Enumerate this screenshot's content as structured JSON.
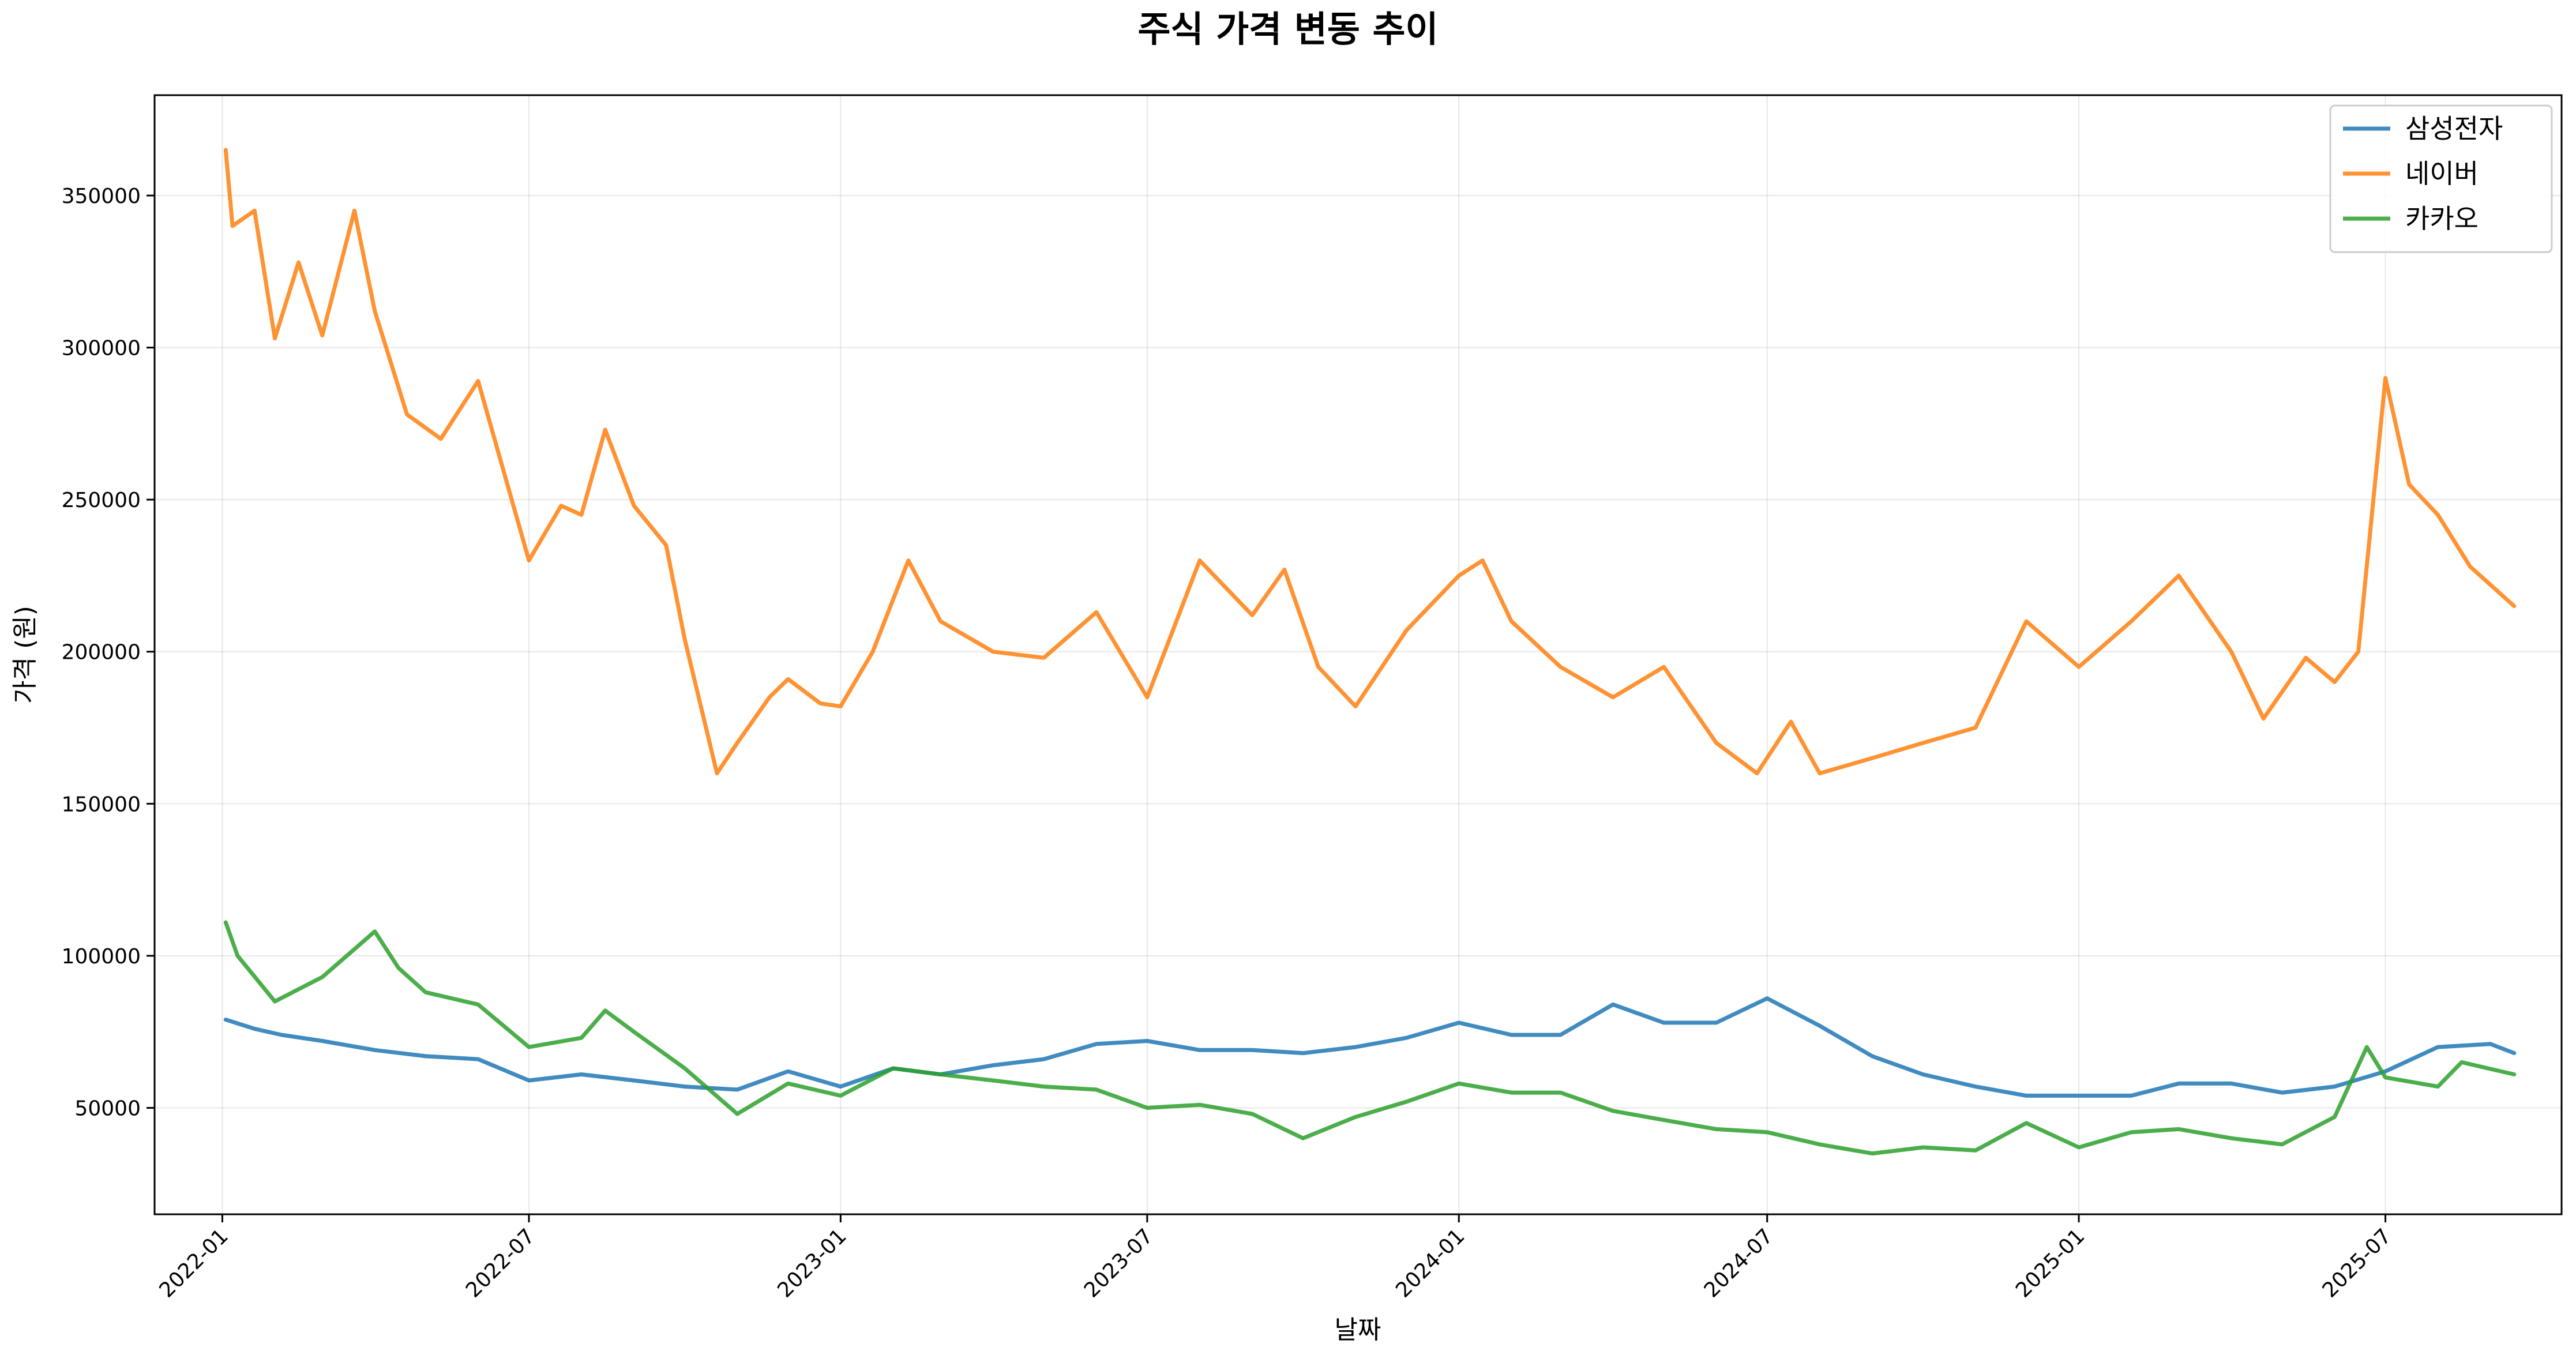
{
  "chart_data": {
    "type": "line",
    "title": "주식 가격 변동 추이",
    "xlabel": "날짜",
    "ylabel": "가격 (원)",
    "x_type": "date",
    "xlim": [
      "2021-11-22",
      "2025-10-13"
    ],
    "ylim": [
      15000,
      383000
    ],
    "x_ticks": [
      "2022-01",
      "2022-07",
      "2023-01",
      "2023-07",
      "2024-01",
      "2024-07",
      "2025-01",
      "2025-07"
    ],
    "y_ticks": [
      50000,
      100000,
      150000,
      200000,
      250000,
      300000,
      350000
    ],
    "grid": true,
    "legend_position": "top-right",
    "series": [
      {
        "name": "삼성전자",
        "color": "#1f77b4",
        "points": [
          [
            "2022-01-03",
            79000
          ],
          [
            "2022-01-20",
            76000
          ],
          [
            "2022-02-05",
            74000
          ],
          [
            "2022-03-01",
            72000
          ],
          [
            "2022-04-01",
            69000
          ],
          [
            "2022-05-01",
            67000
          ],
          [
            "2022-06-01",
            66000
          ],
          [
            "2022-07-01",
            59000
          ],
          [
            "2022-08-01",
            61000
          ],
          [
            "2022-09-01",
            59000
          ],
          [
            "2022-10-01",
            57000
          ],
          [
            "2022-11-01",
            56000
          ],
          [
            "2022-12-01",
            62000
          ],
          [
            "2023-01-01",
            57000
          ],
          [
            "2023-02-01",
            63000
          ],
          [
            "2023-03-01",
            61000
          ],
          [
            "2023-04-01",
            64000
          ],
          [
            "2023-05-01",
            66000
          ],
          [
            "2023-06-01",
            71000
          ],
          [
            "2023-07-01",
            72000
          ],
          [
            "2023-08-01",
            69000
          ],
          [
            "2023-09-01",
            69000
          ],
          [
            "2023-10-01",
            68000
          ],
          [
            "2023-11-01",
            70000
          ],
          [
            "2023-12-01",
            73000
          ],
          [
            "2024-01-01",
            78000
          ],
          [
            "2024-02-01",
            74000
          ],
          [
            "2024-03-01",
            74000
          ],
          [
            "2024-04-01",
            84000
          ],
          [
            "2024-05-01",
            78000
          ],
          [
            "2024-06-01",
            78000
          ],
          [
            "2024-07-01",
            86000
          ],
          [
            "2024-08-01",
            77000
          ],
          [
            "2024-09-01",
            67000
          ],
          [
            "2024-10-01",
            61000
          ],
          [
            "2024-11-01",
            57000
          ],
          [
            "2024-12-01",
            54000
          ],
          [
            "2025-01-01",
            54000
          ],
          [
            "2025-02-01",
            54000
          ],
          [
            "2025-03-01",
            58000
          ],
          [
            "2025-04-01",
            58000
          ],
          [
            "2025-05-01",
            55000
          ],
          [
            "2025-06-01",
            57000
          ],
          [
            "2025-07-01",
            62000
          ],
          [
            "2025-08-01",
            70000
          ],
          [
            "2025-09-01",
            71000
          ],
          [
            "2025-09-15",
            68000
          ]
        ]
      },
      {
        "name": "네이버",
        "color": "#ff7f0e",
        "points": [
          [
            "2022-01-03",
            365000
          ],
          [
            "2022-01-07",
            340000
          ],
          [
            "2022-01-20",
            345000
          ],
          [
            "2022-02-01",
            303000
          ],
          [
            "2022-02-15",
            328000
          ],
          [
            "2022-03-01",
            304000
          ],
          [
            "2022-03-20",
            345000
          ],
          [
            "2022-04-01",
            312000
          ],
          [
            "2022-04-20",
            278000
          ],
          [
            "2022-05-10",
            270000
          ],
          [
            "2022-06-01",
            289000
          ],
          [
            "2022-07-01",
            230000
          ],
          [
            "2022-07-20",
            248000
          ],
          [
            "2022-08-01",
            245000
          ],
          [
            "2022-08-15",
            273000
          ],
          [
            "2022-09-01",
            248000
          ],
          [
            "2022-09-20",
            235000
          ],
          [
            "2022-10-01",
            204000
          ],
          [
            "2022-10-20",
            160000
          ],
          [
            "2022-11-01",
            170000
          ],
          [
            "2022-11-20",
            185000
          ],
          [
            "2022-12-01",
            191000
          ],
          [
            "2022-12-20",
            183000
          ],
          [
            "2023-01-01",
            182000
          ],
          [
            "2023-01-20",
            200000
          ],
          [
            "2023-02-10",
            230000
          ],
          [
            "2023-03-01",
            210000
          ],
          [
            "2023-04-01",
            200000
          ],
          [
            "2023-05-01",
            198000
          ],
          [
            "2023-06-01",
            213000
          ],
          [
            "2023-07-01",
            185000
          ],
          [
            "2023-08-01",
            230000
          ],
          [
            "2023-09-01",
            212000
          ],
          [
            "2023-09-20",
            227000
          ],
          [
            "2023-10-10",
            195000
          ],
          [
            "2023-11-01",
            182000
          ],
          [
            "2023-12-01",
            207000
          ],
          [
            "2024-01-01",
            225000
          ],
          [
            "2024-01-15",
            230000
          ],
          [
            "2024-02-01",
            210000
          ],
          [
            "2024-03-01",
            195000
          ],
          [
            "2024-04-01",
            185000
          ],
          [
            "2024-05-01",
            195000
          ],
          [
            "2024-06-01",
            170000
          ],
          [
            "2024-06-25",
            160000
          ],
          [
            "2024-07-15",
            177000
          ],
          [
            "2024-08-01",
            160000
          ],
          [
            "2024-09-01",
            165000
          ],
          [
            "2024-10-01",
            170000
          ],
          [
            "2024-11-01",
            175000
          ],
          [
            "2024-12-01",
            210000
          ],
          [
            "2025-01-01",
            195000
          ],
          [
            "2025-02-01",
            210000
          ],
          [
            "2025-03-01",
            225000
          ],
          [
            "2025-04-01",
            200000
          ],
          [
            "2025-04-20",
            178000
          ],
          [
            "2025-05-15",
            198000
          ],
          [
            "2025-06-01",
            190000
          ],
          [
            "2025-06-15",
            200000
          ],
          [
            "2025-07-01",
            290000
          ],
          [
            "2025-07-15",
            255000
          ],
          [
            "2025-08-01",
            245000
          ],
          [
            "2025-08-20",
            228000
          ],
          [
            "2025-09-15",
            215000
          ]
        ]
      },
      {
        "name": "카카오",
        "color": "#2ca02c",
        "points": [
          [
            "2022-01-03",
            111000
          ],
          [
            "2022-01-10",
            100000
          ],
          [
            "2022-02-01",
            85000
          ],
          [
            "2022-03-01",
            93000
          ],
          [
            "2022-04-01",
            108000
          ],
          [
            "2022-04-15",
            96000
          ],
          [
            "2022-05-01",
            88000
          ],
          [
            "2022-06-01",
            84000
          ],
          [
            "2022-07-01",
            70000
          ],
          [
            "2022-08-01",
            73000
          ],
          [
            "2022-08-15",
            82000
          ],
          [
            "2022-09-01",
            75000
          ],
          [
            "2022-10-01",
            63000
          ],
          [
            "2022-11-01",
            48000
          ],
          [
            "2022-12-01",
            58000
          ],
          [
            "2023-01-01",
            54000
          ],
          [
            "2023-02-01",
            63000
          ],
          [
            "2023-03-01",
            61000
          ],
          [
            "2023-04-01",
            59000
          ],
          [
            "2023-05-01",
            57000
          ],
          [
            "2023-06-01",
            56000
          ],
          [
            "2023-07-01",
            50000
          ],
          [
            "2023-08-01",
            51000
          ],
          [
            "2023-09-01",
            48000
          ],
          [
            "2023-10-01",
            40000
          ],
          [
            "2023-11-01",
            47000
          ],
          [
            "2023-12-01",
            52000
          ],
          [
            "2024-01-01",
            58000
          ],
          [
            "2024-02-01",
            55000
          ],
          [
            "2024-03-01",
            55000
          ],
          [
            "2024-04-01",
            49000
          ],
          [
            "2024-05-01",
            46000
          ],
          [
            "2024-06-01",
            43000
          ],
          [
            "2024-07-01",
            42000
          ],
          [
            "2024-08-01",
            38000
          ],
          [
            "2024-09-01",
            35000
          ],
          [
            "2024-10-01",
            37000
          ],
          [
            "2024-11-01",
            36000
          ],
          [
            "2024-12-01",
            45000
          ],
          [
            "2025-01-01",
            37000
          ],
          [
            "2025-02-01",
            42000
          ],
          [
            "2025-03-01",
            43000
          ],
          [
            "2025-04-01",
            40000
          ],
          [
            "2025-05-01",
            38000
          ],
          [
            "2025-06-01",
            47000
          ],
          [
            "2025-06-20",
            70000
          ],
          [
            "2025-07-01",
            60000
          ],
          [
            "2025-08-01",
            57000
          ],
          [
            "2025-08-15",
            65000
          ],
          [
            "2025-09-15",
            61000
          ]
        ]
      }
    ]
  }
}
